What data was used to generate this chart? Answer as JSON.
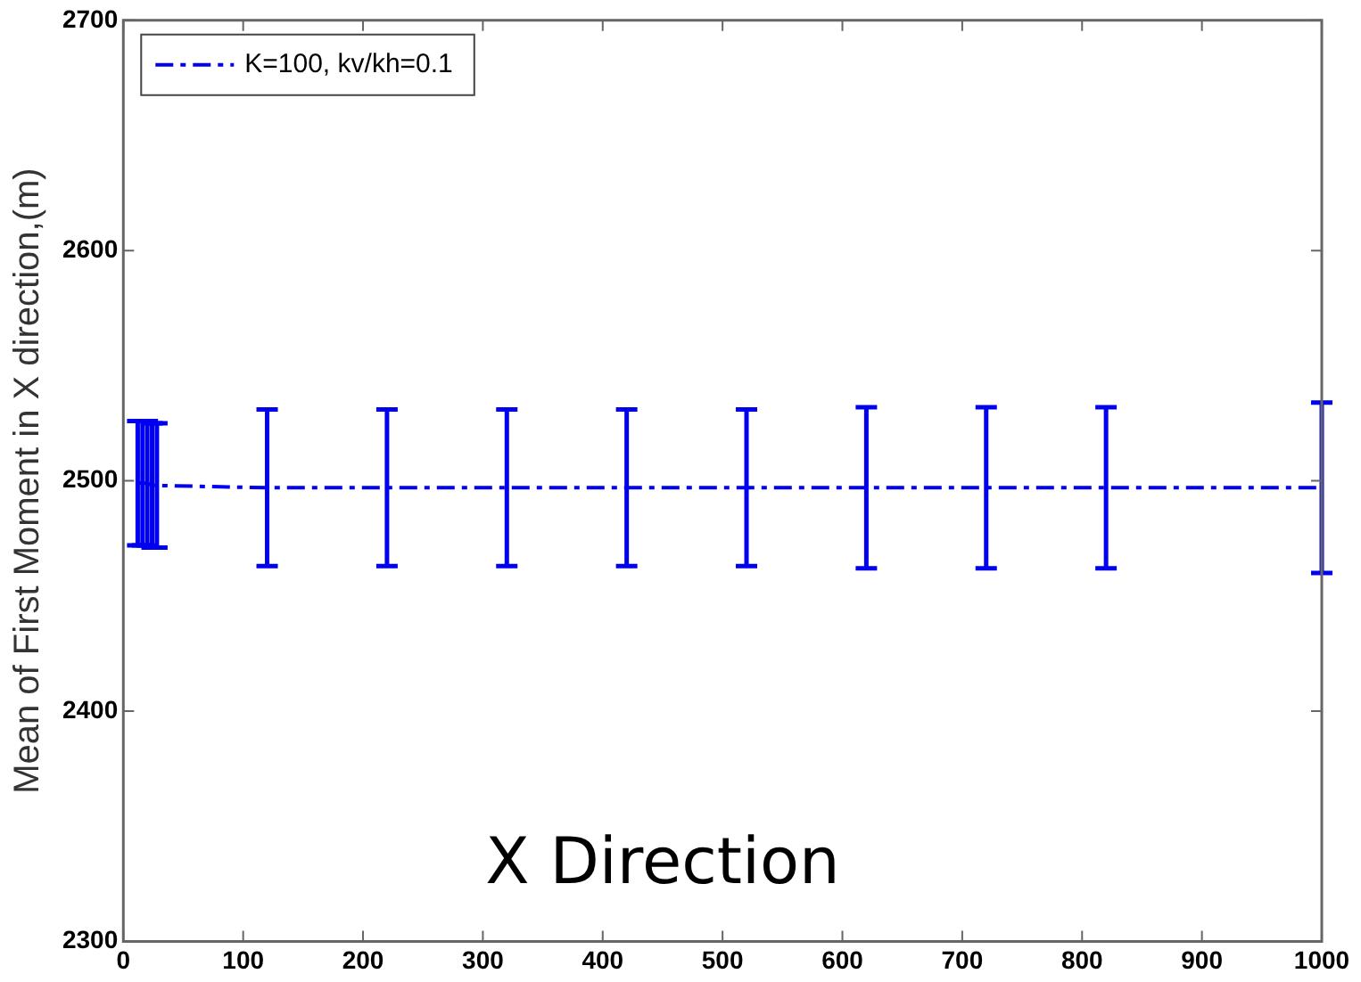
{
  "chart_data": {
    "type": "line",
    "ylabel": "Mean of First Moment in X direction,(m)",
    "annotations": [
      "X Direction"
    ],
    "series": [
      {
        "name": "K=100, kv/kh=0.1",
        "color": "#0000ee",
        "x": [
          12,
          16,
          20,
          24,
          28,
          120,
          220,
          320,
          420,
          520,
          620,
          720,
          820,
          1000
        ],
        "values": [
          2499,
          2499,
          2499,
          2498,
          2498,
          2497,
          2497,
          2497,
          2497,
          2497,
          2497,
          2497,
          2497,
          2497
        ],
        "errors": [
          27,
          27,
          27,
          27,
          27,
          34,
          34,
          34,
          34,
          34,
          35,
          35,
          35,
          37
        ]
      }
    ],
    "xlim": [
      0,
      1000
    ],
    "xticks": [
      0,
      100,
      200,
      300,
      400,
      500,
      600,
      700,
      800,
      900,
      1000
    ],
    "ylim": [
      2300,
      2700
    ],
    "yticks": [
      2300,
      2400,
      2500,
      2600,
      2700
    ],
    "grid": false,
    "legend": "top left",
    "marker": "none",
    "line_style": "dashed"
  }
}
